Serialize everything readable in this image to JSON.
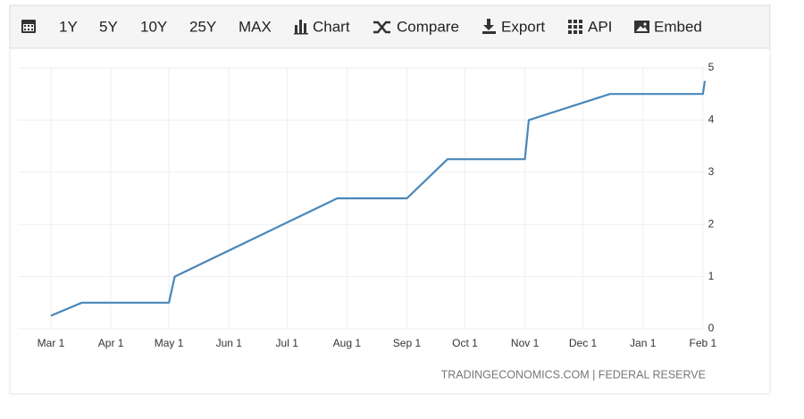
{
  "toolbar": {
    "items": [
      "1Y",
      "5Y",
      "10Y",
      "25Y",
      "MAX",
      "Chart",
      "Compare",
      "Export",
      "API",
      "Embed"
    ]
  },
  "chart_data": {
    "type": "line",
    "x": [
      "Mar 1",
      "Mar 17",
      "May 1",
      "May 4",
      "Jul 27",
      "Sep 1",
      "Sep 22",
      "Nov 1",
      "Nov 3",
      "Dec 15",
      "Feb 1",
      "Feb 2"
    ],
    "series": [
      {
        "color": "#4a87b9",
        "values": [
          0.25,
          0.5,
          0.5,
          1,
          2.5,
          2.5,
          3.25,
          3.25,
          4,
          4.5,
          4.5,
          4.75
        ]
      }
    ],
    "xlim": [
      "Mar 1",
      "Feb 2"
    ],
    "xticks": [
      "Mar 1",
      "Apr 1",
      "May 1",
      "Jun 1",
      "Jul 1",
      "Aug 1",
      "Sep 1",
      "Oct 1",
      "Nov 1",
      "Dec 1",
      "Jan 1",
      "Feb 1"
    ],
    "ylim": [
      0,
      5
    ],
    "yticks": [
      0,
      1,
      2,
      3,
      4,
      5
    ],
    "grid": true,
    "source": "TRADINGECONOMICS.COM | FEDERAL RESERVE"
  }
}
